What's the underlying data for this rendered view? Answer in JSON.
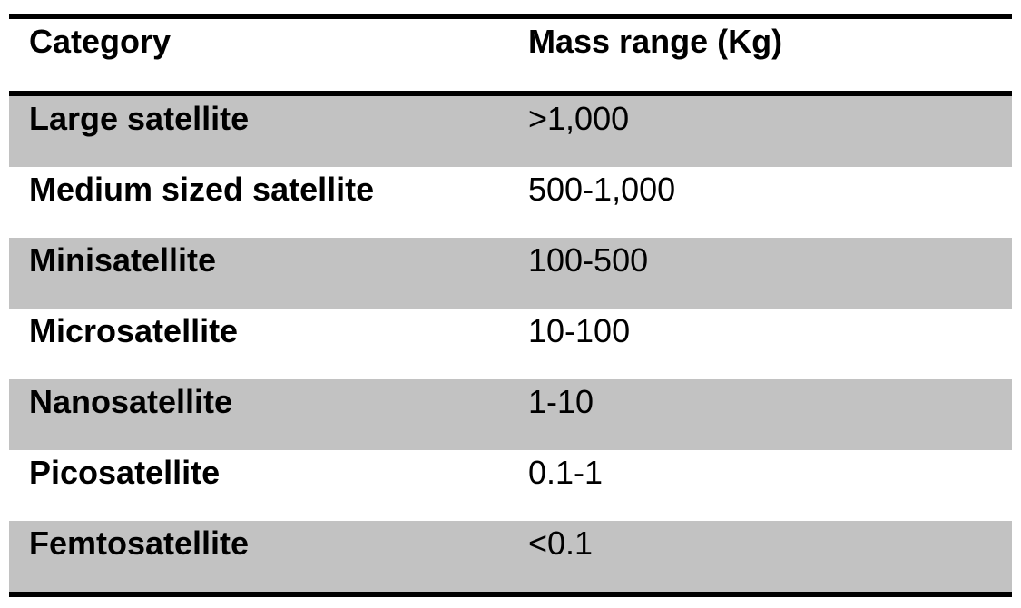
{
  "table": {
    "columns": [
      "Category",
      "Mass range (Kg)"
    ],
    "rows": [
      {
        "category": "Large satellite",
        "mass_range": ">1,000"
      },
      {
        "category": "Medium sized satellite",
        "mass_range": "500-1,000"
      },
      {
        "category": "Minisatellite",
        "mass_range": "100-500"
      },
      {
        "category": "Microsatellite",
        "mass_range": "10-100"
      },
      {
        "category": "Nanosatellite",
        "mass_range": "1-10"
      },
      {
        "category": "Picosatellite",
        "mass_range": "0.1-1"
      },
      {
        "category": "Femtosatellite",
        "mass_range": "<0.1"
      }
    ],
    "colors": {
      "shaded_row": "#c2c2c2",
      "plain_row": "#ffffff",
      "border": "#000000",
      "text": "#000000"
    },
    "shading_pattern": "alternating, first data row shaded"
  },
  "chart_data": {
    "type": "table",
    "title": "",
    "columns": [
      "Category",
      "Mass range (Kg)"
    ],
    "rows": [
      [
        "Large satellite",
        ">1,000"
      ],
      [
        "Medium sized satellite",
        "500-1,000"
      ],
      [
        "Minisatellite",
        "100-500"
      ],
      [
        "Microsatellite",
        "10-100"
      ],
      [
        "Nanosatellite",
        "1-10"
      ],
      [
        "Picosatellite",
        "0.1-1"
      ],
      [
        "Femtosatellite",
        "<0.1"
      ]
    ]
  }
}
